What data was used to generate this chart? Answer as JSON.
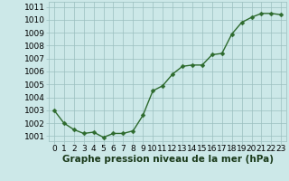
{
  "x": [
    0,
    1,
    2,
    3,
    4,
    5,
    6,
    7,
    8,
    9,
    10,
    11,
    12,
    13,
    14,
    15,
    16,
    17,
    18,
    19,
    20,
    21,
    22,
    23
  ],
  "y": [
    1003.0,
    1002.0,
    1001.5,
    1001.2,
    1001.3,
    1000.9,
    1001.2,
    1001.2,
    1001.4,
    1002.6,
    1004.5,
    1004.9,
    1005.8,
    1006.4,
    1006.5,
    1006.5,
    1007.3,
    1007.4,
    1008.9,
    1009.8,
    1010.2,
    1010.5,
    1010.5,
    1010.4
  ],
  "line_color": "#2d6a2d",
  "marker": "D",
  "marker_size": 2.5,
  "linewidth": 1.0,
  "background_color": "#cce8e8",
  "grid_color": "#9bbfbf",
  "xlabel": "Graphe pression niveau de la mer (hPa)",
  "xlabel_color": "#1a3a1a",
  "xlabel_fontsize": 7.5,
  "tick_fontsize": 6.5,
  "ylim": [
    1000.6,
    1011.4
  ],
  "xlim": [
    -0.5,
    23.5
  ],
  "yticks": [
    1001,
    1002,
    1003,
    1004,
    1005,
    1006,
    1007,
    1008,
    1009,
    1010,
    1011
  ],
  "xticks": [
    0,
    1,
    2,
    3,
    4,
    5,
    6,
    7,
    8,
    9,
    10,
    11,
    12,
    13,
    14,
    15,
    16,
    17,
    18,
    19,
    20,
    21,
    22,
    23
  ]
}
